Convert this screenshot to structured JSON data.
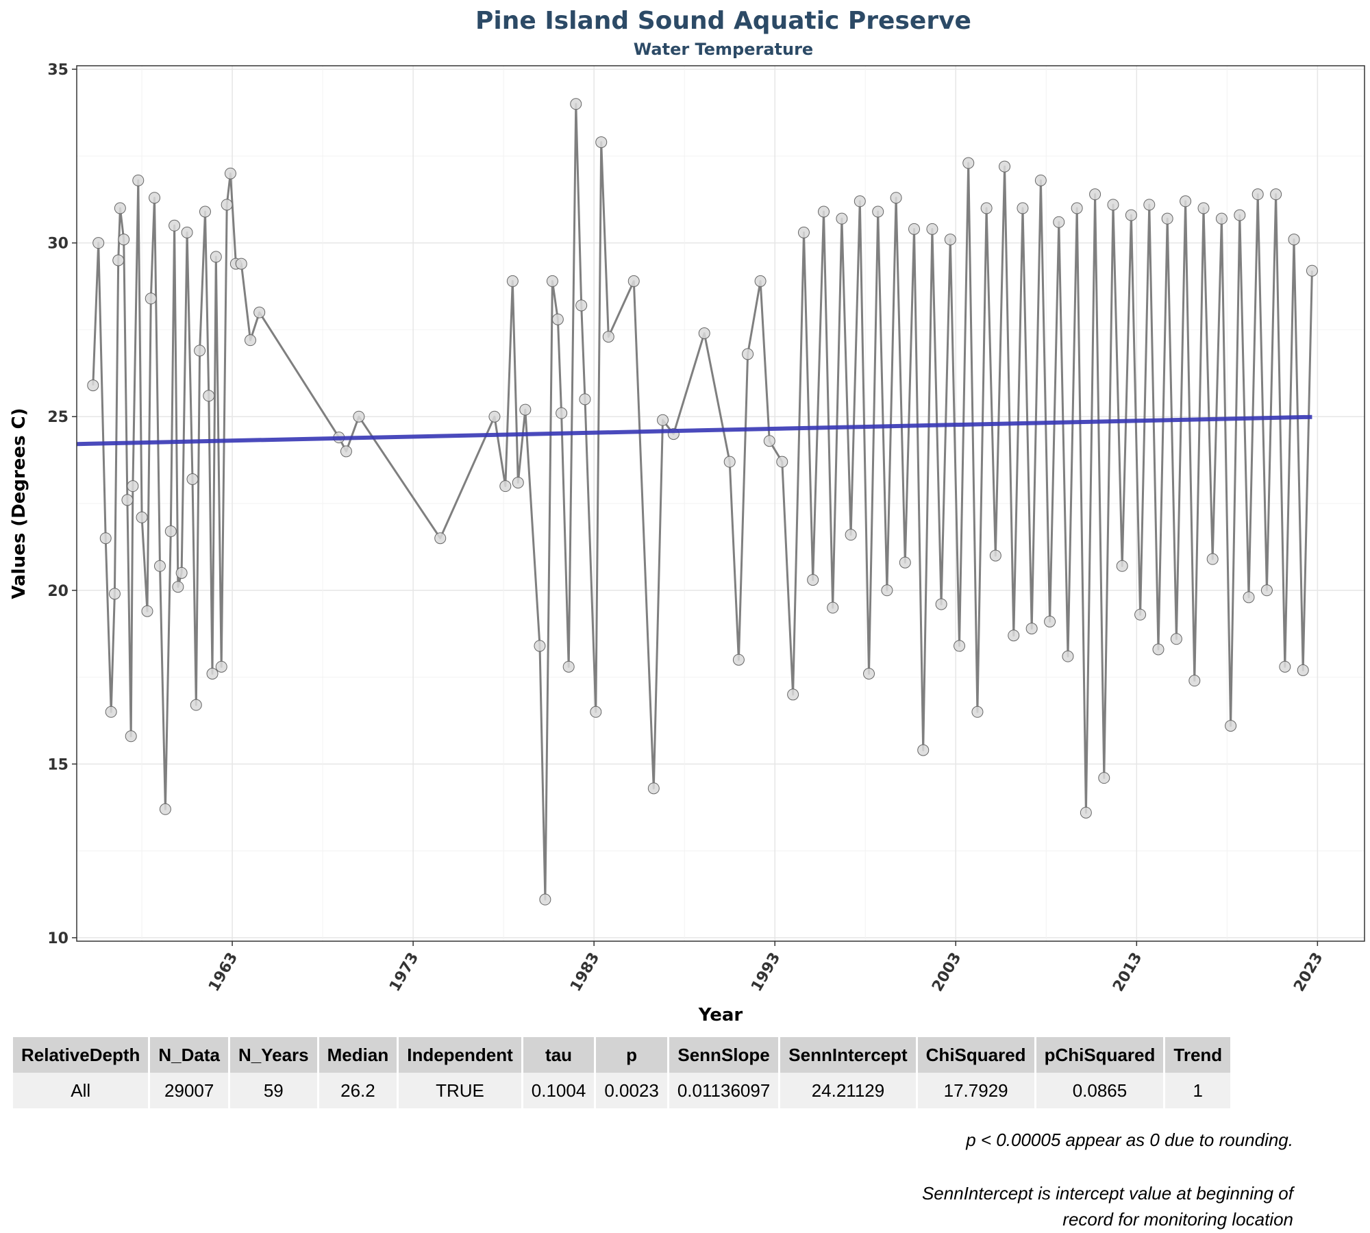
{
  "chart_data": {
    "type": "line",
    "title": "Pine Island Sound Aquatic Preserve",
    "subtitle": "Water Temperature",
    "xlabel": "Year",
    "ylabel": "Values (Degrees C)",
    "xlim": [
      1954.4,
      2025.6
    ],
    "ylim": [
      9.9,
      35.1
    ],
    "x_ticks": [
      "1963",
      "1973",
      "1983",
      "1993",
      "2003",
      "2013",
      "2023"
    ],
    "y_ticks": [
      "10",
      "15",
      "20",
      "25",
      "30",
      "35"
    ],
    "grid": true,
    "series": [
      {
        "x": [
          1955.3,
          1955.6,
          1956.0,
          1956.3,
          1956.5,
          1956.7,
          1956.8,
          1957.0,
          1957.2,
          1957.4,
          1957.5,
          1957.8,
          1958.0,
          1958.3,
          1958.5,
          1958.7,
          1959.0,
          1959.3,
          1959.6,
          1959.8,
          1960.0,
          1960.2,
          1960.5,
          1960.8,
          1961.0,
          1961.2,
          1961.5,
          1961.7,
          1961.9,
          1962.1,
          1962.4,
          1962.7,
          1962.9,
          1963.2,
          1963.5,
          1964.0,
          1964.5,
          1968.9,
          1969.3,
          1970.0,
          1974.5,
          1977.5,
          1978.1,
          1978.5,
          1978.8,
          1979.2,
          1980.0,
          1980.3,
          1980.7,
          1981.0,
          1981.2,
          1981.6,
          1982.0,
          1982.3,
          1982.5,
          1983.1,
          1983.4,
          1983.8,
          1985.2,
          1986.3,
          1986.8,
          1987.4,
          1989.1,
          1990.5,
          1991.0,
          1991.5,
          1992.2,
          1992.7,
          1993.4,
          1994.0,
          1994.6,
          1995.1,
          1995.7,
          1996.2,
          1996.7,
          1997.2,
          1997.7,
          1998.2,
          1998.7,
          1999.2,
          1999.7,
          2000.2,
          2000.7,
          2001.2,
          2001.7,
          2002.2,
          2002.7,
          2003.2,
          2003.7,
          2004.2,
          2004.7,
          2005.2,
          2005.7,
          2006.2,
          2006.7,
          2007.2,
          2007.7,
          2008.2,
          2008.7,
          2009.2,
          2009.7,
          2010.2,
          2010.7,
          2011.2,
          2011.7,
          2012.2,
          2012.7,
          2013.2,
          2013.7,
          2014.2,
          2014.7,
          2015.2,
          2015.7,
          2016.2,
          2016.7,
          2017.2,
          2017.7,
          2018.2,
          2018.7,
          2019.2,
          2019.7,
          2020.2,
          2020.7,
          2021.2,
          2021.7,
          2022.2,
          2022.7
        ],
        "values": [
          25.9,
          30.0,
          21.5,
          16.5,
          19.9,
          29.5,
          31.0,
          30.1,
          22.6,
          15.8,
          23.0,
          31.8,
          22.1,
          19.4,
          28.4,
          31.3,
          20.7,
          13.7,
          21.7,
          30.5,
          20.1,
          20.5,
          30.3,
          23.2,
          16.7,
          26.9,
          30.9,
          25.6,
          17.6,
          29.6,
          17.8,
          31.1,
          32.0,
          29.4,
          29.4,
          27.2,
          28.0,
          24.4,
          24.0,
          25.0,
          21.5,
          25.0,
          23.0,
          28.9,
          23.1,
          25.2,
          18.4,
          11.1,
          28.9,
          27.8,
          25.1,
          17.8,
          34.0,
          28.2,
          25.5,
          16.5,
          32.9,
          27.3,
          28.9,
          14.3,
          24.9,
          24.5,
          27.4,
          23.7,
          18.0,
          26.8,
          28.9,
          24.3,
          23.7,
          17.0,
          30.3,
          20.3,
          30.9,
          19.5,
          30.7,
          21.6,
          31.2,
          17.6,
          30.9,
          20.0,
          31.3,
          20.8,
          30.4,
          15.4,
          30.4,
          19.6,
          30.1,
          18.4,
          32.3,
          16.5,
          31.0,
          21.0,
          32.2,
          18.7,
          31.0,
          18.9,
          31.8,
          19.1,
          30.6,
          18.1,
          31.0,
          13.6,
          31.4,
          14.6,
          31.1,
          20.7,
          30.8,
          19.3,
          31.1,
          18.3,
          30.7,
          18.6,
          31.2,
          17.4,
          31.0,
          20.9,
          30.7,
          16.1,
          30.8,
          19.8,
          31.4,
          20.0,
          31.4,
          17.8,
          30.1,
          17.7,
          29.2
        ]
      },
      {
        "name": "trend",
        "x": [
          1954.4,
          2022.7
        ],
        "values": [
          24.21129,
          24.99
        ]
      }
    ],
    "colors": {
      "data_line": "#7f7f7f",
      "point_fill": "#d9d9d9",
      "point_stroke": "#666666",
      "trend": "#3636b5",
      "title": "#2c4a66"
    }
  },
  "table": {
    "headers": [
      "RelativeDepth",
      "N_Data",
      "N_Years",
      "Median",
      "Independent",
      "tau",
      "p",
      "SennSlope",
      "SennIntercept",
      "ChiSquared",
      "pChiSquared",
      "Trend"
    ],
    "row": [
      "All",
      "29007",
      "59",
      "26.2",
      "TRUE",
      "0.1004",
      "0.0023",
      "0.01136097",
      "24.21129",
      "17.7929",
      "0.0865",
      "1"
    ]
  },
  "notes": {
    "rounding": "p < 0.00005 appear as 0 due to rounding.",
    "intercept_line1": "SennIntercept is intercept value at beginning of",
    "intercept_line2": "record for monitoring location"
  }
}
